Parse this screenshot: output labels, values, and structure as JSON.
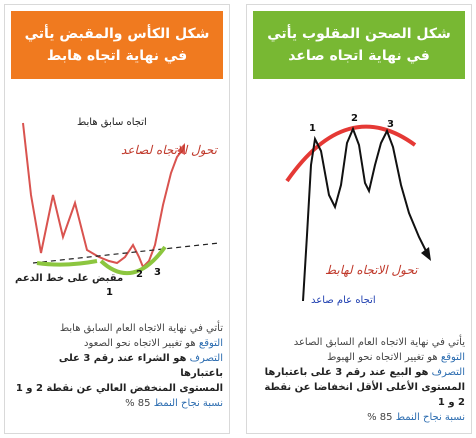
{
  "left_panel": {
    "title_line1": "شكل الكأس والمقبض يأتي",
    "title_line2": "في نهاية اتجاه هابط",
    "labels": {
      "prior_trend": "اتجاه سابق هابط",
      "reversal": "تحول الاتجاه لصاعد",
      "handle": "مقبض على خط الدعم",
      "point1": "1",
      "point2": "2",
      "point3": "3"
    },
    "text": {
      "line1": "تأتي في نهاية الاتجاه العام السابق هابط",
      "expect_label": "التوقع",
      "expect_text": "هو تغيير الاتجاه نحو الصعود",
      "action_label": "التصرف",
      "action_text": "هو الشراء عند رقم 3 على باعتبارها",
      "action_text2": "المستوى المنخفض العالي عن نقطة 2 و 1",
      "success_label": "نسبة نجاح النمط",
      "success_value": "85 %"
    }
  },
  "right_panel": {
    "title_line1": "شكل الصحن المقلوب يأتي",
    "title_line2": "في نهاية اتجاه صاعد",
    "labels": {
      "reversal": "تحول الاتجاه لهابط",
      "general_trend": "اتجاه عام صاعد",
      "point1": "1",
      "point2": "2",
      "point3": "3"
    },
    "text": {
      "line1": "يأتي في نهاية الاتجاه العام السابق الصاعد",
      "expect_label": "التوقع",
      "expect_text": "هو تغيير الاتجاه نحو الهبوط",
      "action_label": "التصرف",
      "action_text": "هو البيع عند رقم 3 على باعتبارها",
      "action_text2": "المستوى الأعلى الأقل انخفاضا عن نقطة 2 و 1",
      "success_label": "نسبة نجاح النمط",
      "success_value": "85 %"
    }
  },
  "colors": {
    "left_header": "#f07a1f",
    "right_header": "#78b833",
    "price_line_red": "#d9534f",
    "cup_green": "#8cc63f",
    "dome_red": "#e53935"
  }
}
